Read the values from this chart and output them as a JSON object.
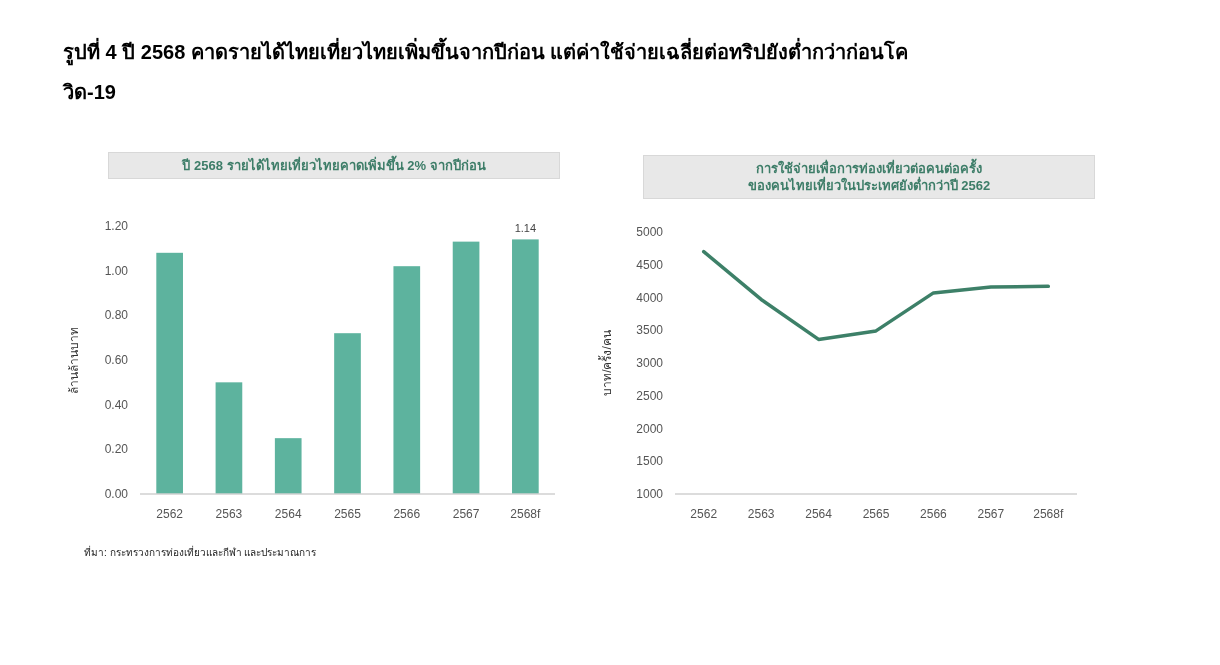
{
  "chart_data": [
    {
      "type": "bar",
      "title": "รูปที่ 4 ปี 2568 คาดรายได้ไทยเที่ยวไทยเพิ่มขึ้นจากปีก่อน แต่ค่าใช้จ่ายเฉลี่ยต่อทริปยังต่ำกว่าก่อนโควิด-19",
      "subtitle": "ปี 2568 รายได้ไทยเที่ยวไทยคาดเพิ่มขึ้น 2% จากปีก่อน",
      "ylabel": "ล้านล้านบาท",
      "categories": [
        "2562",
        "2563",
        "2564",
        "2565",
        "2566",
        "2567",
        "2568f"
      ],
      "values": [
        1.08,
        0.5,
        0.25,
        0.72,
        1.02,
        1.13,
        1.14
      ],
      "color": "#5db39e",
      "value_labels": [
        null,
        null,
        null,
        null,
        null,
        null,
        "1.14"
      ],
      "ylim": [
        0,
        1.2
      ],
      "yticks": [
        {
          "value": 0,
          "label": "0.00"
        },
        {
          "value": 0.2,
          "label": "0.20"
        },
        {
          "value": 0.4,
          "label": "0.40"
        },
        {
          "value": 0.6,
          "label": "0.60"
        },
        {
          "value": 0.8,
          "label": "0.80"
        },
        {
          "value": 1,
          "label": "1.00"
        },
        {
          "value": 1.2,
          "label": "1.20"
        }
      ],
      "annotations": [
        "ที่มา: กระทรวงการท่องเที่ยวและกีฬา และประมาณการ"
      ]
    },
    {
      "type": "line",
      "subtitle": "การใช้จ่ายเพื่อการท่องเที่ยวต่อคนต่อครั้ง\nของคนไทยเที่ยวในประเทศยังต่ำกว่าปี 2562",
      "ylabel": "บาท/ครั้ง/คน",
      "categories": [
        "2562",
        "2563",
        "2564",
        "2565",
        "2566",
        "2567",
        "2568f"
      ],
      "values": [
        4700,
        3970,
        3360,
        3490,
        4070,
        4160,
        4170
      ],
      "color": "#3d8068",
      "ylim": [
        1000,
        5000
      ],
      "yticks": [
        1000,
        1500,
        2000,
        2500,
        3000,
        3500,
        4000,
        4500,
        5000
      ]
    }
  ]
}
